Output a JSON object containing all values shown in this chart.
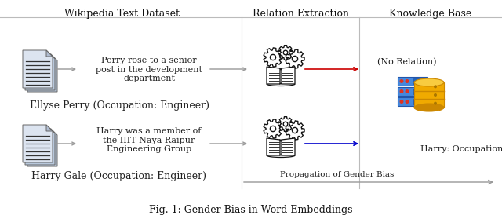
{
  "title": "Fig. 1: Gender Bias in Word Embeddings",
  "bg_color": "#ffffff",
  "header_wikipedia": "Wikipedia Text Dataset",
  "header_relation": "Relation Extraction",
  "header_knowledge": "Knowledge Base",
  "text_perry_sentence": "Perry rose to a senior\npost in the development\ndepartment",
  "text_perry_label": "Ellyse Perry (Occupation: Engineer)",
  "text_harry_sentence": "Harry was a member of\nthe IIIT Naya Raipur\nEngineering Group",
  "text_harry_label": "Harry Gale (Occupation: Engineer)",
  "text_no_relation": "(No Relation)",
  "text_harry_output": "Harry: Occupation: Engineer",
  "text_propagation": "Propagation of Gender Bias",
  "arrow_color_red": "#cc0000",
  "arrow_color_blue": "#0000cc",
  "arrow_color_gray": "#999999",
  "divider_color": "#bbbbbb",
  "text_color": "#222222",
  "header_color": "#111111",
  "doc_face": "#dce4f0",
  "doc_back": "#b8c8dc",
  "doc_edge": "#666666",
  "gear_color": "#111111",
  "book_color": "#111111",
  "db_blue": "#4488dd",
  "db_blue_dark": "#2255aa",
  "db_yellow": "#f0aa00",
  "db_yellow_dark": "#cc8800",
  "db_yellow_light": "#f8cc40",
  "db_red": "#dd3322"
}
